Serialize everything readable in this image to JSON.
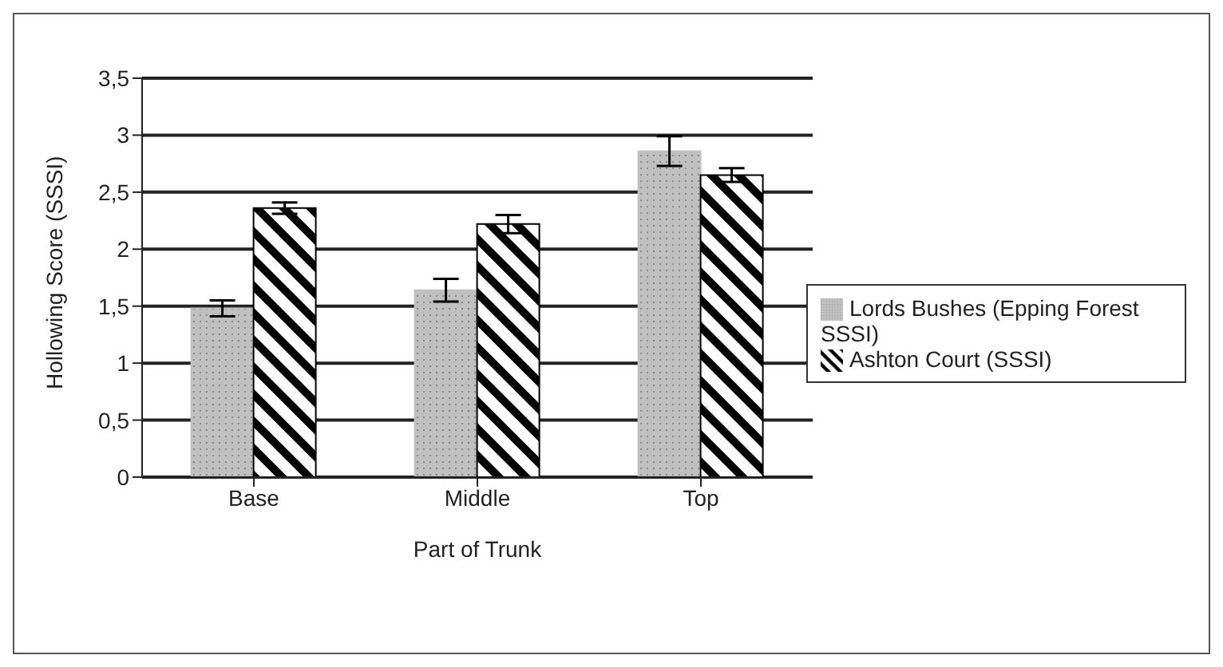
{
  "chart_data": {
    "type": "bar",
    "xlabel": "Part of Trunk",
    "ylabel": "Hollowing Score (SSSI)",
    "categories": [
      "Base",
      "Middle",
      "Top"
    ],
    "series": [
      {
        "name": "Lords Bushes (Epping Forest SSSI)",
        "color": "#c0c0c0",
        "values": [
          1.48,
          1.64,
          2.86
        ],
        "errors": [
          0.07,
          0.1,
          0.13
        ]
      },
      {
        "name": "Ashton Court (SSSI)",
        "color": "#000000",
        "values": [
          2.36,
          2.22,
          2.65
        ],
        "errors": [
          0.05,
          0.08,
          0.06
        ]
      }
    ],
    "ylim": [
      0,
      3.5
    ],
    "yticks": [
      0,
      {
        "value": 0.5,
        "label": "0,5"
      },
      1,
      {
        "value": 1.5,
        "label": "1,5"
      },
      2,
      {
        "value": 2.5,
        "label": "2,5"
      },
      3,
      {
        "value": 3.5,
        "label": "3,5"
      }
    ],
    "grid": "y",
    "legend": "right"
  }
}
